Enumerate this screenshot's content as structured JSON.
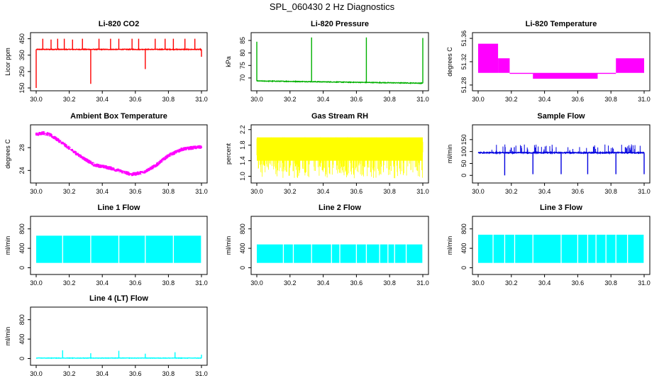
{
  "figure": {
    "title": "SPL_060430  2 Hz Diagnostics"
  },
  "chart_data": [
    {
      "id": "co2",
      "type": "line",
      "title": "Li-820 CO2",
      "ylabel": "Licor ppm",
      "color": "#ff0000",
      "xlim": [
        30.0,
        31.0
      ],
      "ylim": [
        150,
        470
      ],
      "xticks": [
        "30.0",
        "30.2",
        "30.4",
        "30.6",
        "30.8",
        "31.0"
      ],
      "yticks": [
        "150",
        "250",
        "350",
        "450"
      ],
      "baseline": 385,
      "noise": 4,
      "spikes": [
        {
          "x": 30.0,
          "y": 150
        },
        {
          "x": 30.04,
          "y": 450
        },
        {
          "x": 30.09,
          "y": 445
        },
        {
          "x": 30.13,
          "y": 450
        },
        {
          "x": 30.17,
          "y": 450
        },
        {
          "x": 30.22,
          "y": 445
        },
        {
          "x": 30.28,
          "y": 450
        },
        {
          "x": 30.33,
          "y": 175
        },
        {
          "x": 30.38,
          "y": 450
        },
        {
          "x": 30.45,
          "y": 450
        },
        {
          "x": 30.5,
          "y": 450
        },
        {
          "x": 30.58,
          "y": 450
        },
        {
          "x": 30.62,
          "y": 450
        },
        {
          "x": 30.66,
          "y": 265
        },
        {
          "x": 30.72,
          "y": 450
        },
        {
          "x": 30.78,
          "y": 450
        },
        {
          "x": 30.83,
          "y": 450
        },
        {
          "x": 30.9,
          "y": 450
        },
        {
          "x": 30.96,
          "y": 450
        },
        {
          "x": 31.0,
          "y": 340
        }
      ]
    },
    {
      "id": "pressure",
      "type": "line",
      "title": "Li-820 Pressure",
      "ylabel": "kPa",
      "color": "#00b000",
      "xlim": [
        30.0,
        31.0
      ],
      "ylim": [
        66,
        87
      ],
      "xticks": [
        "30.0",
        "30.2",
        "30.4",
        "30.6",
        "30.8",
        "31.0"
      ],
      "yticks": [
        "70",
        "75",
        "80",
        "85"
      ],
      "start_value": 68.8,
      "end_value": 67.9,
      "noise": 0.25,
      "spikes": [
        {
          "x": 30.0,
          "y": 84.5
        },
        {
          "x": 30.33,
          "y": 86.2
        },
        {
          "x": 30.66,
          "y": 86.2
        },
        {
          "x": 31.0,
          "y": 86.0
        }
      ]
    },
    {
      "id": "licor-temp",
      "type": "step",
      "title": "Li-820 Temperature",
      "ylabel": "degrees C",
      "color": "#ff00ff",
      "xlim": [
        30.0,
        31.0
      ],
      "ylim": [
        51.275,
        51.365
      ],
      "xticks": [
        "30.0",
        "30.2",
        "30.4",
        "30.6",
        "30.8",
        "31.0"
      ],
      "yticks": [
        "51.28",
        "51.32",
        "51.36"
      ],
      "bands": [
        {
          "x0": 30.0,
          "x1": 30.12,
          "lo": 51.3,
          "hi": 51.35
        },
        {
          "x0": 30.12,
          "x1": 30.19,
          "lo": 51.3,
          "hi": 51.325
        },
        {
          "x0": 30.19,
          "x1": 30.33,
          "lo": 51.3,
          "hi": 51.3
        },
        {
          "x0": 30.33,
          "x1": 30.72,
          "lo": 51.29,
          "hi": 51.3
        },
        {
          "x0": 30.72,
          "x1": 30.83,
          "lo": 51.3,
          "hi": 51.3
        },
        {
          "x0": 30.83,
          "x1": 31.0,
          "lo": 51.3,
          "hi": 51.325
        }
      ]
    },
    {
      "id": "ambient-temp",
      "type": "line",
      "title": "Ambient Box Temperature",
      "ylabel": "degrees C",
      "color": "#ff00ff",
      "xlim": [
        30.0,
        31.0
      ],
      "ylim": [
        22.3,
        31.5
      ],
      "xticks": [
        "30.0",
        "30.2",
        "30.4",
        "30.6",
        "30.8",
        "31.0"
      ],
      "yticks": [
        "24",
        "28"
      ],
      "points": [
        {
          "x": 30.0,
          "y": 30.3
        },
        {
          "x": 30.04,
          "y": 30.6
        },
        {
          "x": 30.08,
          "y": 30.3
        },
        {
          "x": 30.15,
          "y": 29.0
        },
        {
          "x": 30.25,
          "y": 26.8
        },
        {
          "x": 30.35,
          "y": 25.0
        },
        {
          "x": 30.45,
          "y": 24.4
        },
        {
          "x": 30.52,
          "y": 23.8
        },
        {
          "x": 30.58,
          "y": 23.3
        },
        {
          "x": 30.65,
          "y": 23.7
        },
        {
          "x": 30.72,
          "y": 24.8
        },
        {
          "x": 30.8,
          "y": 26.6
        },
        {
          "x": 30.88,
          "y": 27.7
        },
        {
          "x": 30.95,
          "y": 28.0
        },
        {
          "x": 31.0,
          "y": 28.1
        }
      ],
      "band": 0.7
    },
    {
      "id": "rh",
      "type": "noise",
      "title": "Gas Stream RH",
      "ylabel": "percent",
      "color": "#ffff00",
      "xlim": [
        30.0,
        31.0
      ],
      "ylim": [
        0.9,
        2.25
      ],
      "xticks": [
        "30.0",
        "30.2",
        "30.4",
        "30.6",
        "30.8",
        "31.0"
      ],
      "yticks": [
        "1.0",
        "1.4",
        "1.8",
        "2.2"
      ],
      "lo": 0.95,
      "hi": 2.05,
      "core_lo": 1.4,
      "core_hi": 2.0
    },
    {
      "id": "sample-flow",
      "type": "line",
      "title": "Sample Flow",
      "ylabel": "ml/min",
      "color": "#0000e0",
      "xlim": [
        30.0,
        31.0
      ],
      "ylim": [
        -20,
        200
      ],
      "xticks": [
        "30.0",
        "30.2",
        "30.4",
        "30.6",
        "30.8",
        "31.0"
      ],
      "yticks": [
        "0",
        "50",
        "100",
        "150"
      ],
      "baseline": 95,
      "noise": 4,
      "dips": [
        {
          "x": 30.16,
          "y": 0
        },
        {
          "x": 30.33,
          "y": 5
        },
        {
          "x": 30.5,
          "y": 5
        },
        {
          "x": 30.66,
          "y": 5
        },
        {
          "x": 30.83,
          "y": 5
        },
        {
          "x": 31.0,
          "y": 5
        }
      ]
    },
    {
      "id": "line1",
      "type": "band",
      "title": "Line 1 Flow",
      "ylabel": "ml/min",
      "color": "#00ffff",
      "xlim": [
        30.0,
        31.0
      ],
      "ylim": [
        -80,
        1000
      ],
      "xticks": [
        "30.0",
        "30.2",
        "30.4",
        "30.6",
        "30.8",
        "31.0"
      ],
      "yticks": [
        "0",
        "400",
        "800"
      ],
      "lo": 100,
      "hi": 660,
      "gaps": [
        30.16,
        30.33,
        30.5,
        30.66,
        30.83,
        31.0
      ]
    },
    {
      "id": "line2",
      "type": "band",
      "title": "Line 2 Flow",
      "ylabel": "ml/min",
      "color": "#00ffff",
      "xlim": [
        30.0,
        31.0
      ],
      "ylim": [
        -80,
        1000
      ],
      "xticks": [
        "30.0",
        "30.2",
        "30.4",
        "30.6",
        "30.8",
        "31.0"
      ],
      "yticks": [
        "0",
        "400",
        "800"
      ],
      "lo": 100,
      "hi": 480,
      "gaps": [
        30.16,
        30.22,
        30.33,
        30.45,
        30.5,
        30.6,
        30.66,
        30.74,
        30.79,
        30.83,
        30.9,
        31.0
      ]
    },
    {
      "id": "line3",
      "type": "band",
      "title": "Line 3 Flow",
      "ylabel": "ml/min",
      "color": "#00ffff",
      "xlim": [
        30.0,
        31.0
      ],
      "ylim": [
        -80,
        1000
      ],
      "xticks": [
        "30.0",
        "30.2",
        "30.4",
        "30.6",
        "30.8",
        "31.0"
      ],
      "yticks": [
        "0",
        "400",
        "800"
      ],
      "lo": 100,
      "hi": 680,
      "gaps": [
        30.09,
        30.16,
        30.22,
        30.33,
        30.5,
        30.6,
        30.66,
        30.71,
        30.77,
        30.83,
        30.9,
        31.0
      ]
    },
    {
      "id": "line4",
      "type": "line",
      "title": "Line 4 (LT) Flow",
      "ylabel": "ml/min",
      "color": "#00ffff",
      "xlim": [
        30.0,
        31.0
      ],
      "ylim": [
        -80,
        1000
      ],
      "xticks": [
        "30.0",
        "30.2",
        "30.4",
        "30.6",
        "30.8",
        "31.0"
      ],
      "yticks": [
        "0",
        "400",
        "800"
      ],
      "baseline": 10,
      "noise": 8,
      "spikes": [
        {
          "x": 30.16,
          "y": 170
        },
        {
          "x": 30.33,
          "y": 110
        },
        {
          "x": 30.5,
          "y": 160
        },
        {
          "x": 30.66,
          "y": 100
        },
        {
          "x": 30.84,
          "y": 130
        },
        {
          "x": 31.0,
          "y": 80
        }
      ]
    }
  ]
}
